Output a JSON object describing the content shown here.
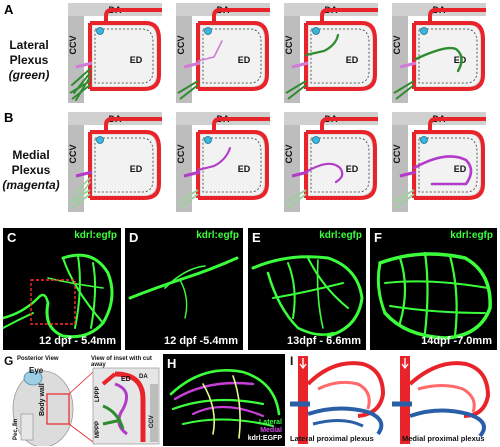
{
  "panels": {
    "A": {
      "letter": "A",
      "title_line1": "Lateral",
      "title_line2": "Plexus",
      "title_line3": "(green)"
    },
    "B": {
      "letter": "B",
      "title_line1": "Medial",
      "title_line2": "Plexus",
      "title_line3": "(magenta)"
    },
    "schematic_labels": {
      "da": "DA",
      "ccv": "CCV",
      "ed": "ED"
    },
    "C": {
      "letter": "C",
      "tag": "kdrl:egfp",
      "caption": "12 dpf - 5.4mm"
    },
    "D": {
      "letter": "D",
      "tag": "kdrl:egfp",
      "caption": "12 dpf -5.4mm"
    },
    "E": {
      "letter": "E",
      "tag": "kdrl:egfp",
      "caption": "13dpf - 6.6mm"
    },
    "F": {
      "letter": "F",
      "tag": "kdrl:egfp",
      "caption": "14dpf -7.0mm"
    },
    "G": {
      "letter": "G",
      "posterior_view": "Posterior View",
      "inset_view": "View of inset with cut away",
      "eye": "Eye",
      "body_wall": "Body wall",
      "pec_fin": "Pec. fin",
      "lppp": "LPPP",
      "mppp": "MPPP",
      "ed": "ED",
      "da": "DA",
      "ccv": "CCV"
    },
    "H": {
      "letter": "H",
      "legend_lateral": "Lateral",
      "legend_medial": "Medial",
      "legend_egfp": "kdrl:EGFP"
    },
    "I": {
      "letter": "I",
      "caption_left": "Lateral proximal plexus",
      "caption_right": "Medial proximal plexus"
    }
  },
  "colors": {
    "artery": "#e8242a",
    "lateral": "#2e8b2e",
    "medial": "#b23cc8",
    "ccv": "#b8b8b8",
    "micro_green": "#3cff3c",
    "vein_blue": "#2a5fa8"
  }
}
